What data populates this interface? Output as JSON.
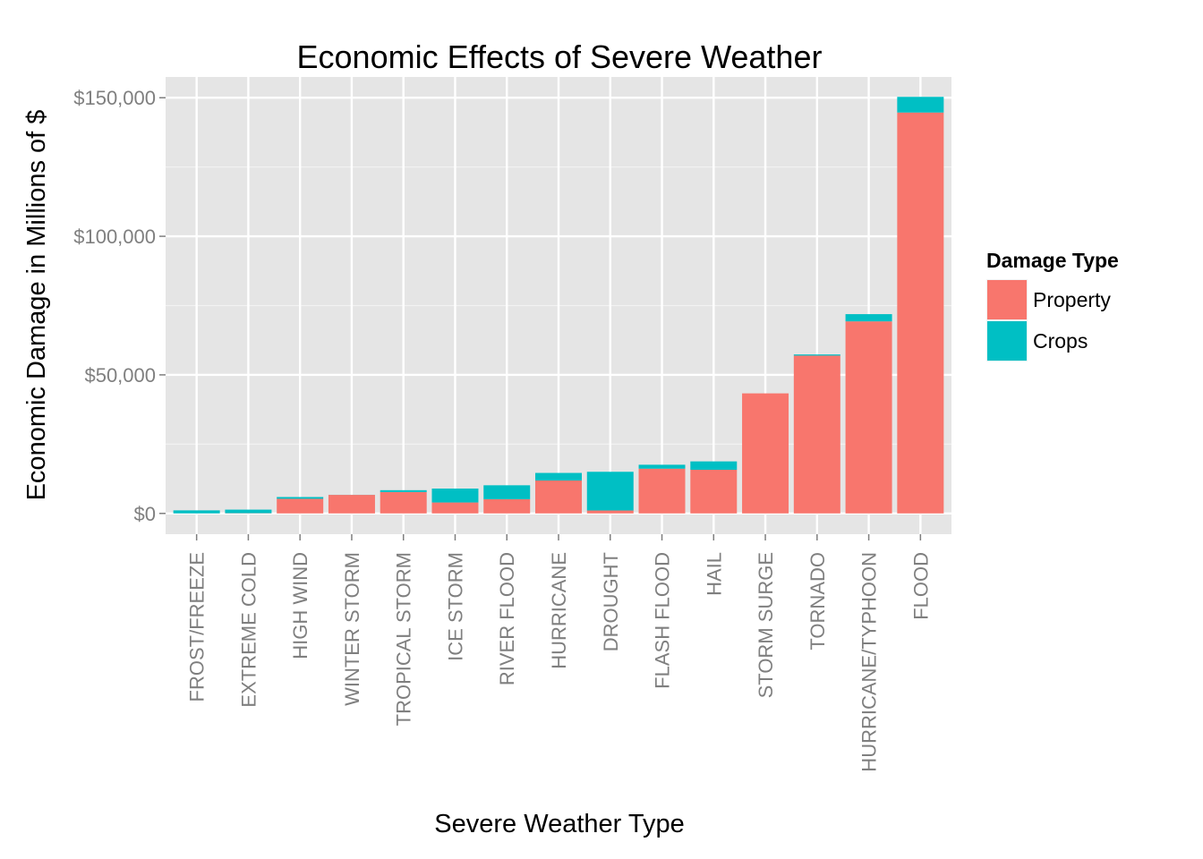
{
  "chart_data": {
    "type": "bar",
    "stacked": true,
    "title": "Economic Effects of Severe Weather",
    "xlabel": "Severe Weather Type",
    "ylabel": "Economic Damage in Millions of $",
    "ylim": [
      -7500,
      157500
    ],
    "yticks": [
      0,
      50000,
      100000,
      150000
    ],
    "ytick_labels": [
      "$0",
      "$50,000",
      "$100,000",
      "$150,000"
    ],
    "grid": true,
    "legend": {
      "title": "Damage Type",
      "position": "right"
    },
    "categories": [
      "FROST/FREEZE",
      "EXTREME COLD",
      "HIGH WIND",
      "WINTER STORM",
      "TROPICAL STORM",
      "ICE STORM",
      "RIVER FLOOD",
      "HURRICANE",
      "DROUGHT",
      "FLASH FLOOD",
      "HAIL",
      "STORM SURGE",
      "TORNADO",
      "HURRICANE/TYPHOON",
      "FLOOD"
    ],
    "series": [
      {
        "name": "Property",
        "color": "#f8766d",
        "values": [
          10,
          70,
          5270,
          6690,
          7700,
          3940,
          5120,
          11870,
          1050,
          16140,
          15740,
          43320,
          56940,
          69300,
          144660
        ]
      },
      {
        "name": "Crops",
        "color": "#00bfc4",
        "values": [
          1090,
          1290,
          640,
          30,
          680,
          5020,
          5030,
          2740,
          13970,
          1420,
          3030,
          0,
          410,
          2610,
          5660
        ]
      }
    ]
  }
}
